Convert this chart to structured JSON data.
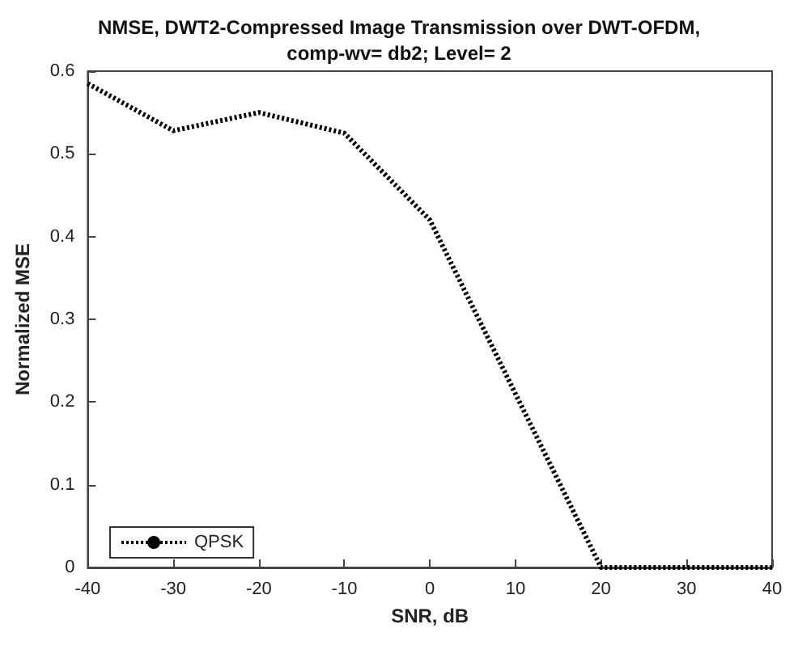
{
  "chart_data": {
    "type": "line",
    "title": "NMSE, DWT2-Compressed Image Transmission over DWT-OFDM,\ncomp-wv= db2; Level= 2",
    "xlabel": "SNR, dB",
    "ylabel": "Normalized MSE",
    "x": [
      -40,
      -30,
      -20,
      -10,
      0,
      10,
      20,
      30,
      40
    ],
    "series": [
      {
        "name": "QPSK",
        "color": "#000000",
        "values": [
          0.585,
          0.528,
          0.55,
          0.525,
          0.42,
          0.21,
          0,
          0,
          0
        ]
      }
    ],
    "xlim": [
      -40,
      40
    ],
    "xticks": [
      -40,
      -30,
      -20,
      -10,
      0,
      10,
      20,
      30,
      40
    ],
    "ylim": [
      0,
      0.6
    ],
    "yticks": [
      0,
      0.1,
      0.2,
      0.3,
      0.4,
      0.5,
      0.6
    ],
    "grid": false,
    "legend": "bottom left",
    "marker": "none",
    "line_style": "dotted"
  }
}
